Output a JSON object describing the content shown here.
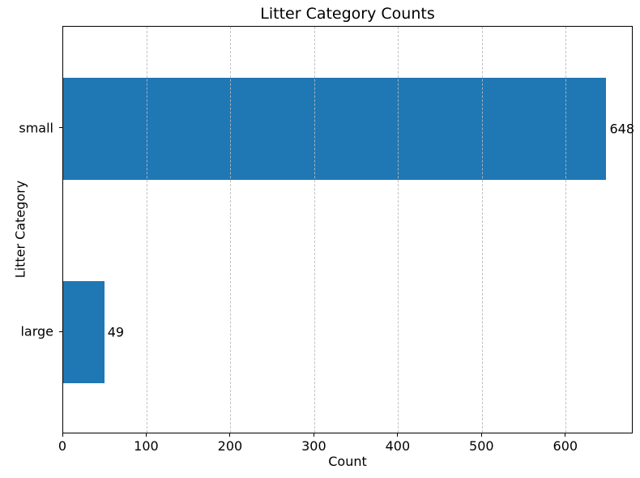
{
  "chart_data": {
    "type": "bar",
    "orientation": "horizontal",
    "title": "Litter Category Counts",
    "xlabel": "Count",
    "ylabel": "Litter Category",
    "categories": [
      "small",
      "large"
    ],
    "values": [
      648,
      49
    ],
    "bar_value_labels": [
      "648",
      "49"
    ],
    "xticks": [
      0,
      100,
      200,
      300,
      400,
      500,
      600
    ],
    "xlim": [
      0,
      680.4
    ],
    "bar_height_fraction": 0.5,
    "grid": "vertical-dashed",
    "legend": "none",
    "colors": {
      "bar": "#1f77b4",
      "grid": "#b9b9b9",
      "text": "#000000",
      "spine": "#000000",
      "background": "#ffffff"
    }
  }
}
